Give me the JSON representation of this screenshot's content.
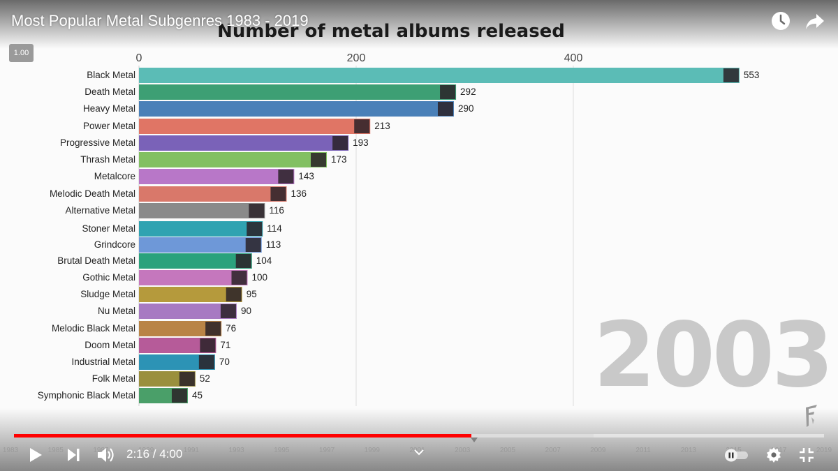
{
  "player": {
    "title": "Most Popular Metal Subgenres 1983 - 2019",
    "speed": "1.00",
    "time": "2:16 / 4:00",
    "progress_fraction": 0.565,
    "timeline_years": [
      "1983",
      "1985",
      "1987",
      "1989",
      "1991",
      "1993",
      "1995",
      "1997",
      "1999",
      "2001",
      "2003",
      "2005",
      "2007",
      "2009",
      "2011",
      "2013",
      "2015",
      "2017",
      "2019"
    ]
  },
  "icons": {
    "watch_later": "clock-icon",
    "share": "share-icon",
    "play": "play-icon",
    "next": "next-icon",
    "volume": "volume-icon",
    "chevron": "chevron-down-icon",
    "autoplay": "autoplay-toggle-icon",
    "settings": "gear-icon",
    "exit_fullscreen": "exit-fullscreen-icon"
  },
  "chart_data": {
    "type": "bar",
    "orientation": "horizontal",
    "title": "Number of metal albums released",
    "year": "2003",
    "xlim": [
      0,
      553
    ],
    "xticks": [
      0,
      200,
      400
    ],
    "grid": true,
    "categories": [
      "Black Metal",
      "Death Metal",
      "Heavy Metal",
      "Power Metal",
      "Progressive Metal",
      "Thrash Metal",
      "Metalcore",
      "Melodic Death Metal",
      "Alternative Metal",
      "Stoner Metal",
      "Grindcore",
      "Brutal Death Metal",
      "Gothic Metal",
      "Sludge Metal",
      "Nu Metal",
      "Melodic Black Metal",
      "Doom Metal",
      "Industrial Metal",
      "Folk Metal",
      "Symphonic Black Metal"
    ],
    "values": [
      553,
      292,
      290,
      213,
      193,
      173,
      143,
      136,
      116,
      114,
      113,
      104,
      100,
      95,
      90,
      76,
      71,
      70,
      52,
      45
    ],
    "colors": [
      "#5bbcb6",
      "#3d9f74",
      "#4a80b8",
      "#e07565",
      "#7a62b8",
      "#82c062",
      "#b877c8",
      "#d9786a",
      "#8a8a8a",
      "#2fa3b1",
      "#6e98d8",
      "#2aa27c",
      "#c577bd",
      "#b59a3c",
      "#a77ac2",
      "#b98446",
      "#b65b99",
      "#2c93b5",
      "#9a8f3d",
      "#4a9f69"
    ]
  }
}
